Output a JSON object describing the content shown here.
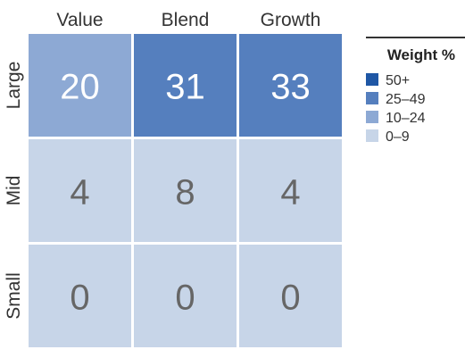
{
  "chart_data": {
    "type": "heatmap",
    "title": "",
    "columns": [
      "Value",
      "Blend",
      "Growth"
    ],
    "rows": [
      "Large",
      "Mid",
      "Small"
    ],
    "values": [
      [
        20,
        31,
        33
      ],
      [
        4,
        8,
        4
      ],
      [
        0,
        0,
        0
      ]
    ],
    "legend": {
      "title": "Weight %",
      "placement": "right",
      "bins": [
        {
          "label": "50+",
          "color": "#1f57a5"
        },
        {
          "label": "25–49",
          "color": "#557fbe"
        },
        {
          "label": "10–24",
          "color": "#8da9d4"
        },
        {
          "label": "0–9",
          "color": "#c7d5e8"
        }
      ]
    },
    "text_colors": {
      "light": "#ffffff",
      "dark": "#666666"
    }
  }
}
